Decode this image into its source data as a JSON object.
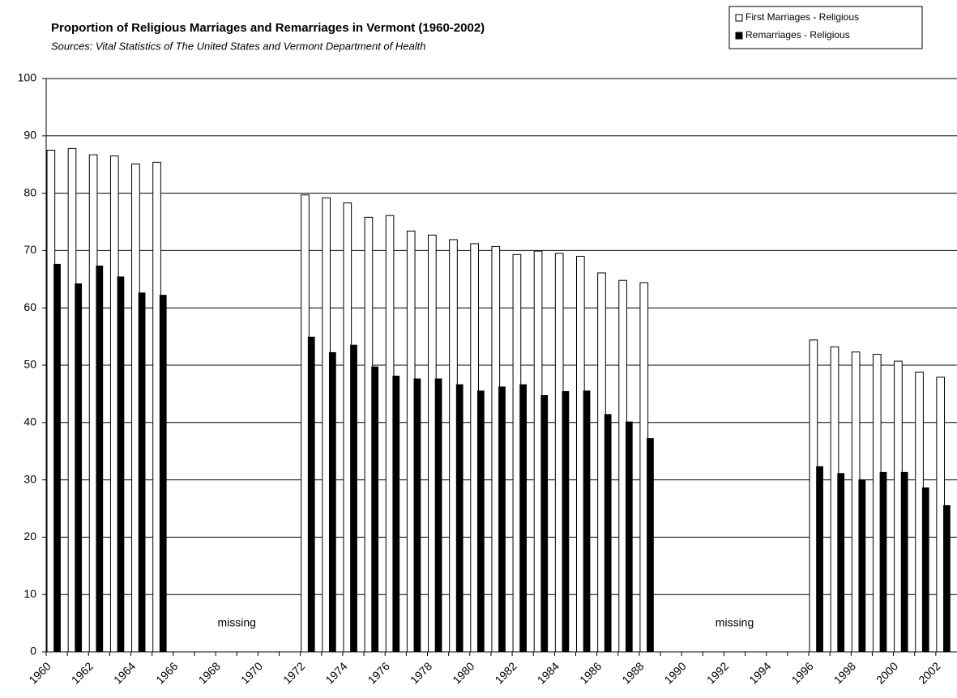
{
  "chart_data": {
    "type": "bar",
    "title": "Proportion of Religious Marriages and Remarriages in Vermont (1960-2002)",
    "subtitle": "Sources: Vital Statistics of The United States and Vermont Department of Health",
    "categories": [
      "1960",
      null,
      "1962",
      null,
      "1964",
      null,
      "1966",
      null,
      "1968",
      null,
      "1970",
      null,
      "1972",
      null,
      "1974",
      null,
      "1976",
      null,
      "1978",
      null,
      "1980",
      null,
      "1982",
      null,
      "1984",
      null,
      "1986",
      null,
      "1988",
      null,
      "1990",
      null,
      "1992",
      null,
      "1994",
      null,
      "1996",
      null,
      "1998",
      null,
      "2000",
      null,
      "2002"
    ],
    "series": [
      {
        "name": "First Marriages - Religious",
        "color": "#ffffff",
        "values": [
          87.5,
          87.8,
          86.7,
          86.5,
          85.1,
          85.4,
          null,
          null,
          null,
          null,
          null,
          null,
          79.7,
          79.2,
          78.3,
          75.8,
          76.1,
          73.4,
          72.7,
          71.9,
          71.2,
          70.7,
          69.3,
          69.9,
          69.5,
          69.0,
          66.1,
          64.8,
          64.4,
          null,
          null,
          null,
          null,
          null,
          null,
          null,
          54.4,
          53.2,
          52.3,
          51.9,
          50.7,
          48.8,
          47.9
        ]
      },
      {
        "name": "Remarriages - Religious",
        "color": "#000000",
        "values": [
          67.6,
          64.2,
          67.3,
          65.4,
          62.6,
          62.2,
          null,
          null,
          null,
          null,
          null,
          null,
          54.9,
          52.2,
          53.5,
          49.7,
          48.1,
          47.6,
          47.6,
          46.6,
          45.5,
          46.2,
          46.6,
          44.7,
          45.4,
          45.5,
          41.4,
          40.1,
          37.2,
          null,
          null,
          null,
          null,
          null,
          null,
          null,
          32.3,
          31.1,
          30.0,
          31.3,
          31.3,
          28.6,
          25.5
        ]
      }
    ],
    "annotations": [
      "missing",
      "missing"
    ],
    "ylim": [
      0,
      100
    ],
    "yticks": [
      0,
      10,
      20,
      30,
      40,
      50,
      60,
      70,
      80,
      90,
      100
    ],
    "grid": true,
    "legend": "top-right"
  }
}
